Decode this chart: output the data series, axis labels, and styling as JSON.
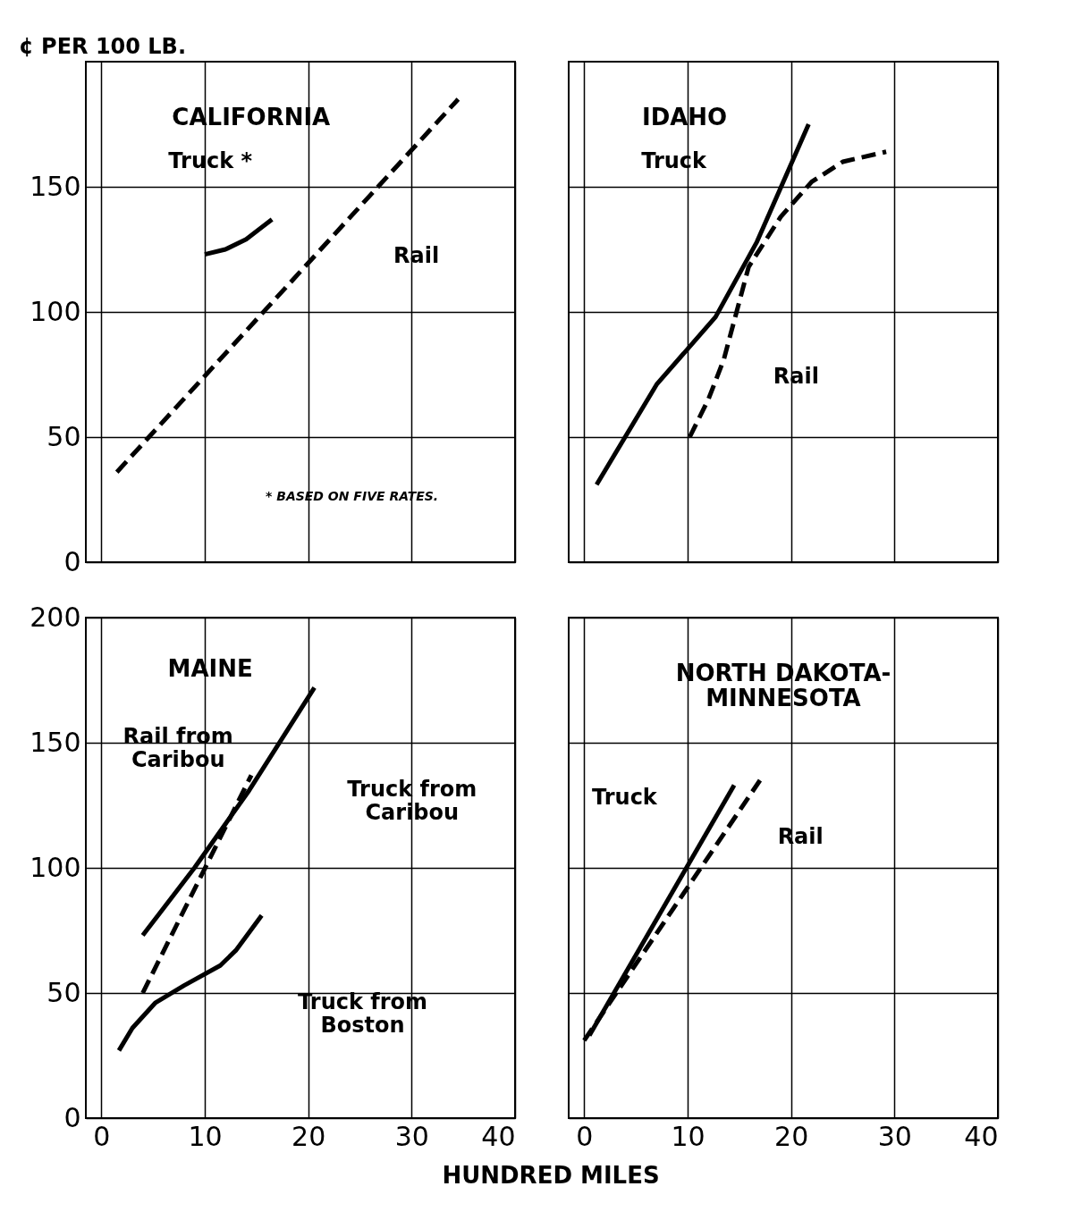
{
  "chart_data": [
    {
      "type": "line",
      "title": "CALIFORNIA",
      "ylabel": "¢ PER 100 LB.",
      "xlim": [
        -1.5,
        40
      ],
      "ylim": [
        0,
        200
      ],
      "xticks": [
        0,
        10,
        20,
        30,
        40
      ],
      "yticks": [
        0,
        50,
        100,
        150
      ],
      "grid": true,
      "tick_labels": "y",
      "series": [
        {
          "color": "#000000",
          "line_style": "dashed",
          "x": [
            1.5,
            34.5
          ],
          "values": [
            36,
            185
          ]
        },
        {
          "color": "#000000",
          "line_style": "solid",
          "x": [
            10,
            12,
            14,
            16.5
          ],
          "values": [
            123,
            125,
            129,
            137
          ]
        }
      ],
      "annotations": [
        "Truck *",
        "Rail",
        "* BASED ON FIVE RATES."
      ]
    },
    {
      "type": "line",
      "title": "IDAHO",
      "xlim": [
        -1.5,
        40
      ],
      "ylim": [
        0,
        200
      ],
      "xticks": [
        0,
        10,
        20,
        30,
        40
      ],
      "yticks": [
        0,
        50,
        100,
        150
      ],
      "grid": true,
      "tick_labels": false,
      "series": [
        {
          "color": "#000000",
          "line_style": "solid",
          "x": [
            1.2,
            7,
            12.7,
            16.7,
            21.7
          ],
          "values": [
            31,
            71,
            98,
            128,
            175
          ]
        },
        {
          "color": "#000000",
          "line_style": "dashed",
          "x": [
            10.2,
            12,
            13.5,
            15.9,
            19,
            22,
            25,
            29.2
          ],
          "values": [
            50,
            65,
            81,
            118,
            138,
            152,
            160,
            164
          ]
        }
      ],
      "annotations": [
        "Truck",
        "Rail"
      ]
    },
    {
      "type": "line",
      "title": "MAINE",
      "xlabel": "HUNDRED MILES",
      "xlim": [
        -1.5,
        40
      ],
      "ylim": [
        0,
        200
      ],
      "xticks": [
        0,
        10,
        20,
        30,
        40
      ],
      "yticks": [
        0,
        50,
        100,
        150,
        200
      ],
      "grid": true,
      "series": [
        {
          "color": "#000000",
          "line_style": "solid",
          "x": [
            4,
            9,
            14.3,
            20.6
          ],
          "values": [
            73,
            100,
            131,
            172
          ]
        },
        {
          "color": "#000000",
          "line_style": "dashed",
          "x": [
            4,
            14.5
          ],
          "values": [
            50,
            137
          ]
        },
        {
          "color": "#000000",
          "line_style": "solid",
          "x": [
            1.7,
            3,
            5.2,
            8,
            11.5,
            13,
            15.5
          ],
          "values": [
            27,
            36,
            46,
            53,
            61,
            67,
            81
          ]
        }
      ],
      "annotations": [
        "Rail from\nCaribou",
        "Truck from\nCaribou",
        "Truck from\nBoston"
      ]
    },
    {
      "type": "line",
      "title": "NORTH DAKOTA-\nMINNESOTA",
      "xlim": [
        -1.5,
        40
      ],
      "ylim": [
        0,
        200
      ],
      "xticks": [
        0,
        10,
        20,
        30,
        40
      ],
      "yticks": [
        0,
        50,
        100,
        150,
        200
      ],
      "grid": true,
      "tick_labels": "x",
      "series": [
        {
          "color": "#000000",
          "line_style": "solid",
          "x": [
            0.5,
            14.5
          ],
          "values": [
            33,
            133
          ]
        },
        {
          "color": "#000000",
          "line_style": "dashed",
          "x": [
            0,
            17
          ],
          "values": [
            31,
            135
          ]
        }
      ],
      "annotations": [
        "Truck",
        "Rail"
      ]
    }
  ]
}
